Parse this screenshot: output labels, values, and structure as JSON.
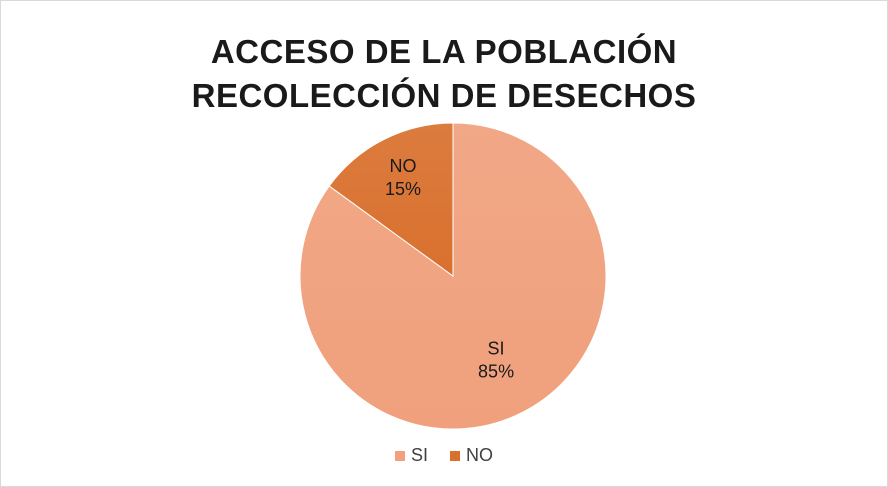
{
  "chart_data": {
    "type": "pie",
    "title_lines": [
      "ACCESO DE LA POBLACIÓN",
      "RECOLECCIÓN DE DESECHOS"
    ],
    "slices": [
      {
        "label": "SI",
        "value": 85,
        "value_label": "85%",
        "color": "#f0a07c"
      },
      {
        "label": "NO",
        "value": 15,
        "value_label": "15%",
        "color": "#d9702e"
      }
    ],
    "legend": {
      "position": "bottom",
      "entries": [
        "SI",
        "NO"
      ]
    },
    "start": "top, clockwise"
  }
}
